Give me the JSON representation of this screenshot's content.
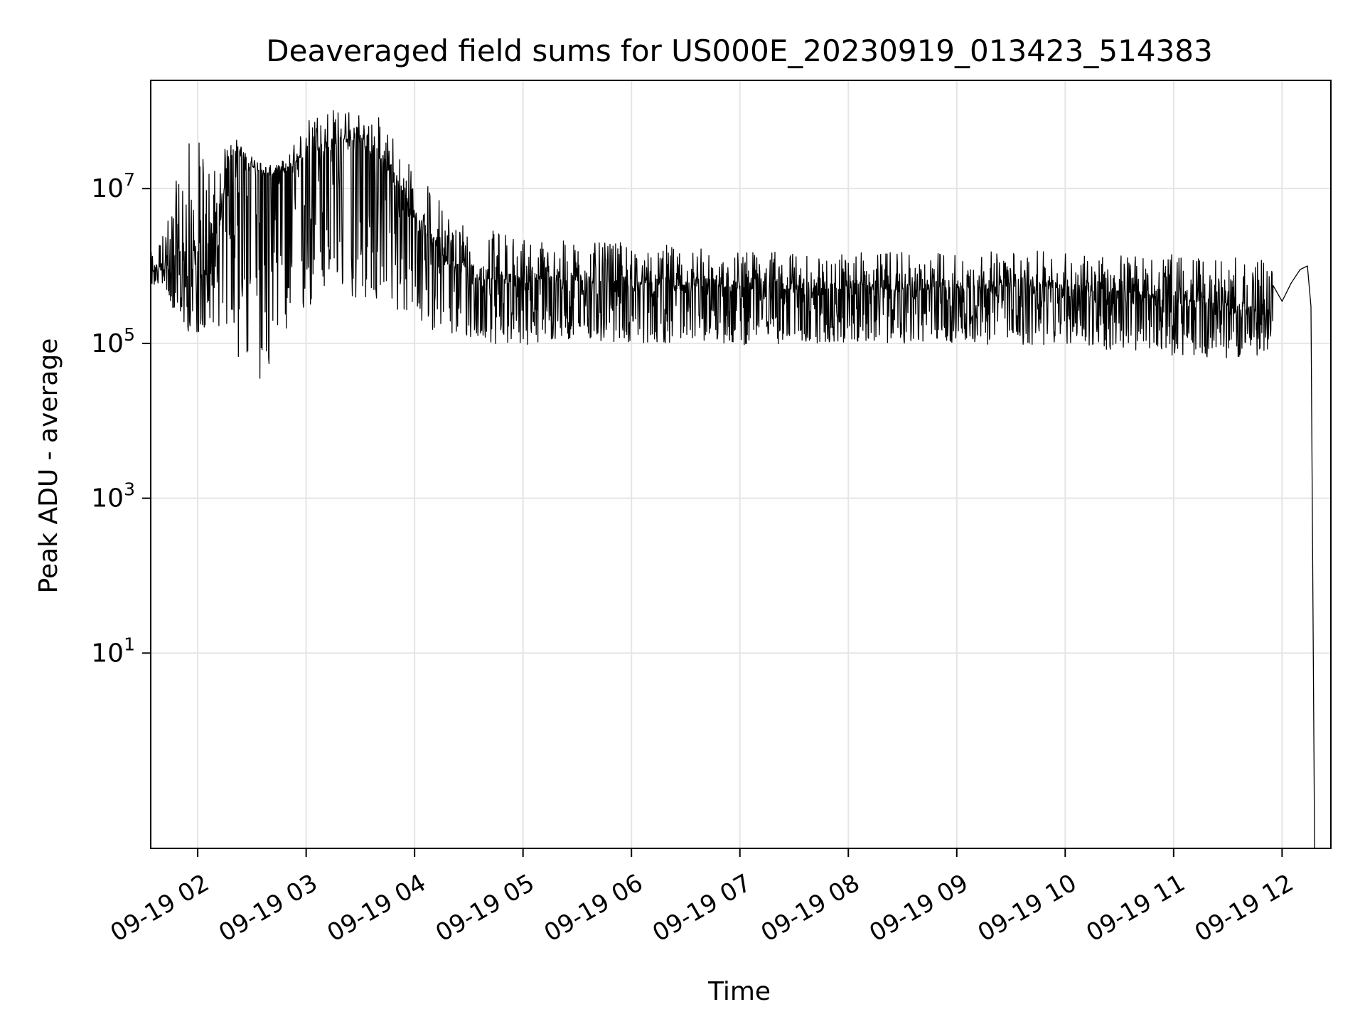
{
  "chart_data": {
    "type": "line",
    "title": "Deaveraged field sums for US000E_20230919_013423_514383",
    "xlabel": "Time",
    "ylabel": "Peak ADU - average",
    "yscale": "log",
    "grid": true,
    "line_color": "#000000",
    "grid_color": "#e5e5e5",
    "xlim": [
      "2023-09-19 01:34",
      "2023-09-19 12:27"
    ],
    "ylim": [
      0.03,
      250000000.0
    ],
    "x_ticks": [
      {
        "t": "2023-09-19 02:00",
        "label": "09-19 02"
      },
      {
        "t": "2023-09-19 03:00",
        "label": "09-19 03"
      },
      {
        "t": "2023-09-19 04:00",
        "label": "09-19 04"
      },
      {
        "t": "2023-09-19 05:00",
        "label": "09-19 05"
      },
      {
        "t": "2023-09-19 06:00",
        "label": "09-19 06"
      },
      {
        "t": "2023-09-19 07:00",
        "label": "09-19 07"
      },
      {
        "t": "2023-09-19 08:00",
        "label": "09-19 08"
      },
      {
        "t": "2023-09-19 09:00",
        "label": "09-19 09"
      },
      {
        "t": "2023-09-19 10:00",
        "label": "09-19 10"
      },
      {
        "t": "2023-09-19 11:00",
        "label": "09-19 11"
      },
      {
        "t": "2023-09-19 12:00",
        "label": "09-19 12"
      }
    ],
    "y_ticks": [
      {
        "value": 10,
        "base": "10",
        "exp": "1"
      },
      {
        "value": 1000,
        "base": "10",
        "exp": "3"
      },
      {
        "value": 100000,
        "base": "10",
        "exp": "5"
      },
      {
        "value": 10000000,
        "base": "10",
        "exp": "7"
      }
    ],
    "series": [
      {
        "x": [
          "2023-09-19 01:34",
          "2023-09-19 01:42",
          "2023-09-19 01:50",
          "2023-09-19 01:57",
          "2023-09-19 02:04",
          "2023-09-19 02:10",
          "2023-09-19 02:16",
          "2023-09-19 02:22",
          "2023-09-19 02:26",
          "2023-09-19 02:32",
          "2023-09-19 02:38",
          "2023-09-19 02:44",
          "2023-09-19 02:48",
          "2023-09-19 02:54",
          "2023-09-19 03:00",
          "2023-09-19 03:05",
          "2023-09-19 03:10",
          "2023-09-19 03:20",
          "2023-09-19 03:30",
          "2023-09-19 03:40",
          "2023-09-19 03:50",
          "2023-09-19 04:00",
          "2023-09-19 04:10",
          "2023-09-19 04:20",
          "2023-09-19 04:30",
          "2023-09-19 04:40",
          "2023-09-19 05:00",
          "2023-09-19 05:30",
          "2023-09-19 06:00",
          "2023-09-19 06:30",
          "2023-09-19 07:00",
          "2023-09-19 07:30",
          "2023-09-19 08:00",
          "2023-09-19 08:30",
          "2023-09-19 09:00",
          "2023-09-19 09:30",
          "2023-09-19 10:00",
          "2023-09-19 10:30",
          "2023-09-19 11:00",
          "2023-09-19 11:30",
          "2023-09-19 11:50",
          "2023-09-19 12:00",
          "2023-09-19 12:05",
          "2023-09-19 12:10",
          "2023-09-19 12:14",
          "2023-09-19 12:16",
          "2023-09-19 12:18"
        ],
        "y": [
          800000,
          900000,
          700000,
          900000,
          600000,
          900000,
          20000000,
          30000000,
          22000000,
          18000000,
          15000000,
          15000000,
          16000000,
          20000000,
          25000000,
          30000000,
          35000000,
          40000000,
          38000000,
          25000000,
          12000000,
          4000000,
          2000000,
          1000000,
          800000,
          700000,
          600000,
          600000,
          600000,
          550000,
          500000,
          500000,
          500000,
          480000,
          500000,
          550000,
          500000,
          450000,
          380000,
          300000,
          250000,
          350000,
          600000,
          900000,
          1000000,
          300000,
          0.03
        ],
        "lo": [
          600000,
          400000,
          200000,
          120000,
          150000,
          200000,
          100000,
          60000,
          40000,
          30000,
          35000,
          40000,
          60000,
          100000,
          200000,
          300000,
          400000,
          400000,
          350000,
          300000,
          250000,
          200000,
          150000,
          120000,
          110000,
          100000,
          95000,
          100000,
          100000,
          100000,
          95000,
          100000,
          100000,
          100000,
          100000,
          95000,
          90000,
          80000,
          70000,
          65000,
          70000,
          150000,
          400000,
          700000,
          800000,
          200000,
          0.03
        ],
        "hi": [
          1500000,
          3000000,
          20000000,
          60000000,
          30000000,
          25000000,
          35000000,
          45000000,
          30000000,
          25000000,
          20000000,
          20000000,
          25000000,
          40000000,
          80000000,
          100000000,
          110000000,
          110000000,
          100000000,
          90000000,
          50000000,
          15000000,
          10000000,
          5000000,
          4000000,
          3000000,
          2500000,
          2000000,
          2000000,
          1800000,
          1600000,
          1500000,
          1500000,
          1500000,
          1500000,
          1600000,
          1500000,
          1500000,
          1400000,
          1300000,
          1200000,
          800000,
          900000,
          1200000,
          1400000,
          1000000,
          0.03
        ]
      }
    ]
  }
}
